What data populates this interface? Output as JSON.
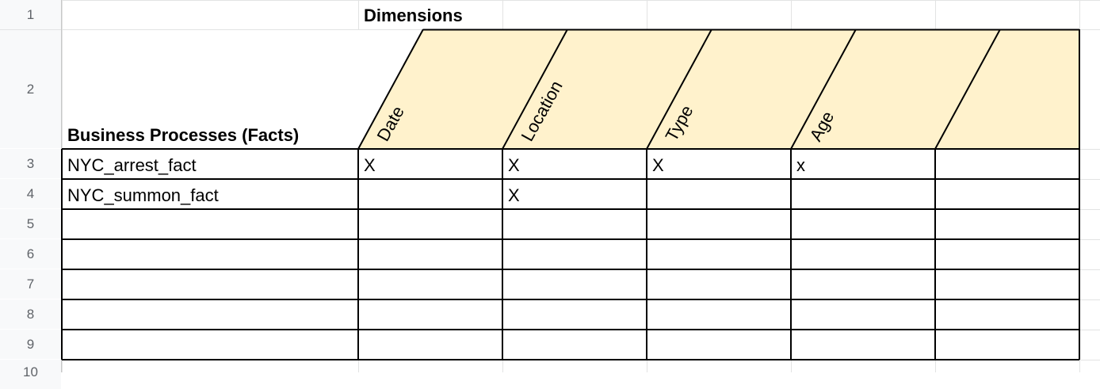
{
  "row_numbers": [
    "1",
    "2",
    "3",
    "4",
    "5",
    "6",
    "7",
    "8",
    "9",
    "10"
  ],
  "dimensions_label": "Dimensions",
  "facts_header": "Business Processes (Facts)",
  "dimension_headers": [
    "Date",
    "Location",
    "Type",
    "Age",
    ""
  ],
  "rows": [
    {
      "fact": "NYC_arrest_fact",
      "marks": [
        "X",
        "X",
        "X",
        "x",
        ""
      ]
    },
    {
      "fact": "NYC_summon_fact",
      "marks": [
        "",
        "X",
        "",
        "",
        ""
      ]
    },
    {
      "fact": "",
      "marks": [
        "",
        "",
        "",
        "",
        ""
      ]
    },
    {
      "fact": "",
      "marks": [
        "",
        "",
        "",
        "",
        ""
      ]
    },
    {
      "fact": "",
      "marks": [
        "",
        "",
        "",
        "",
        ""
      ]
    },
    {
      "fact": "",
      "marks": [
        "",
        "",
        "",
        "",
        ""
      ]
    },
    {
      "fact": "",
      "marks": [
        "",
        "",
        "",
        "",
        ""
      ]
    }
  ],
  "colors": {
    "header_fill": "#fff2cc",
    "grid_line": "#e2e3e3",
    "border": "#000000",
    "row_header_bg": "#f8f9fa"
  }
}
